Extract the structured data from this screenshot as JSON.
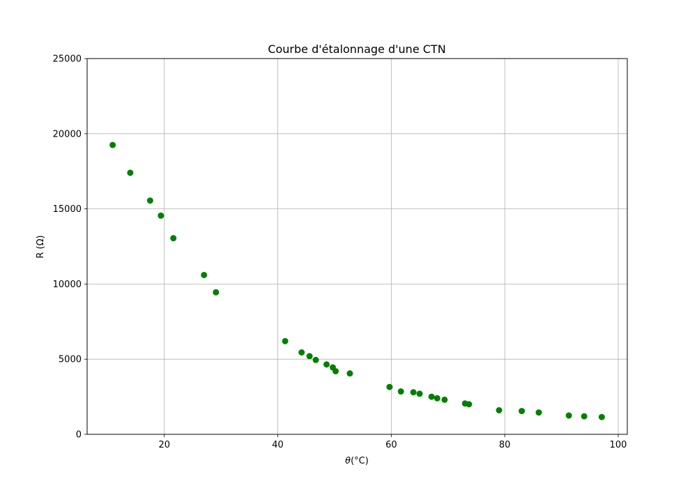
{
  "chart_data": {
    "type": "scatter",
    "title": "Courbe d'étalonnage d'une CTN",
    "xlabel_symbol": "θ",
    "xlabel_unit": "(°C)",
    "ylabel": "R (Ω)",
    "xlim": [
      6.4,
      101.6
    ],
    "ylim": [
      0,
      25000
    ],
    "x_ticks": [
      20,
      40,
      60,
      80,
      100
    ],
    "y_ticks": [
      0,
      5000,
      10000,
      15000,
      20000,
      25000
    ],
    "grid": true,
    "marker_color": "#008000",
    "points": [
      {
        "x": 10.9,
        "y": 19250
      },
      {
        "x": 14.0,
        "y": 17400
      },
      {
        "x": 17.5,
        "y": 15550
      },
      {
        "x": 19.4,
        "y": 14550
      },
      {
        "x": 21.6,
        "y": 13050
      },
      {
        "x": 27.0,
        "y": 10600
      },
      {
        "x": 29.1,
        "y": 9450
      },
      {
        "x": 41.3,
        "y": 6200
      },
      {
        "x": 44.2,
        "y": 5450
      },
      {
        "x": 45.6,
        "y": 5200
      },
      {
        "x": 46.7,
        "y": 4950
      },
      {
        "x": 48.6,
        "y": 4650
      },
      {
        "x": 49.7,
        "y": 4450
      },
      {
        "x": 50.2,
        "y": 4200
      },
      {
        "x": 52.7,
        "y": 4050
      },
      {
        "x": 59.7,
        "y": 3150
      },
      {
        "x": 61.7,
        "y": 2850
      },
      {
        "x": 63.9,
        "y": 2800
      },
      {
        "x": 65.0,
        "y": 2700
      },
      {
        "x": 67.1,
        "y": 2500
      },
      {
        "x": 68.1,
        "y": 2400
      },
      {
        "x": 69.4,
        "y": 2300
      },
      {
        "x": 73.0,
        "y": 2050
      },
      {
        "x": 73.7,
        "y": 2000
      },
      {
        "x": 79.0,
        "y": 1600
      },
      {
        "x": 83.0,
        "y": 1550
      },
      {
        "x": 86.0,
        "y": 1450
      },
      {
        "x": 91.3,
        "y": 1250
      },
      {
        "x": 94.0,
        "y": 1200
      },
      {
        "x": 97.1,
        "y": 1150
      }
    ]
  }
}
